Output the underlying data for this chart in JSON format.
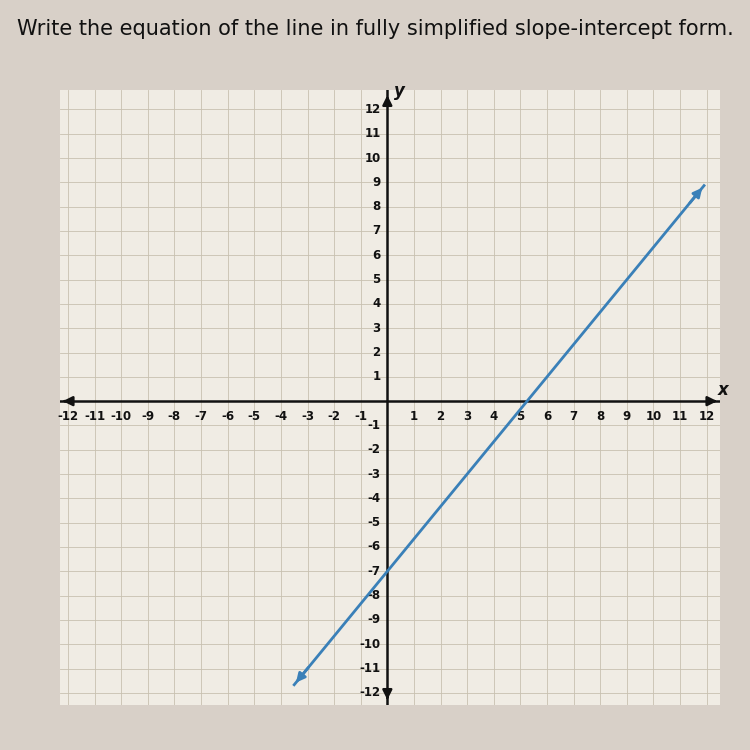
{
  "title": "Write the equation of the line in fully simplified slope-intercept form.",
  "title_fontsize": 15,
  "xmin": -12,
  "xmax": 12,
  "ymin": -12,
  "ymax": 12,
  "slope": 1.3333333333333333,
  "intercept": -7,
  "line_color": "#3a80b8",
  "line_width": 2.0,
  "x_line_start": -3.5,
  "x_line_end": 11.9,
  "background_color": "#f0ece4",
  "plot_bg_color": "#f0ece4",
  "grid_color": "#c8c0b0",
  "axis_color": "#111111",
  "tick_fontsize": 8.5,
  "xlabel": "x",
  "ylabel": "y",
  "fig_bg": "#d8d0c8"
}
